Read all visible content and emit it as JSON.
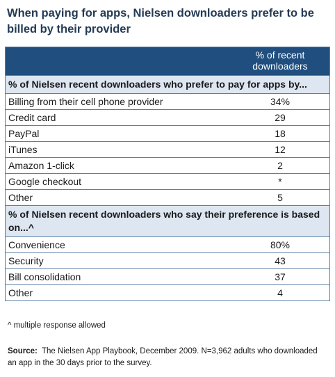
{
  "title": "When paying for apps, Nielsen downloaders prefer to be billed by their provider",
  "table": {
    "column_header": "% of recent downloaders",
    "sections": [
      {
        "heading": "% of Nielsen recent downloaders who prefer to pay for apps by...",
        "rows": [
          {
            "label": "Billing from their cell phone provider",
            "value": "34%"
          },
          {
            "label": "Credit card",
            "value": "29"
          },
          {
            "label": "PayPal",
            "value": "18"
          },
          {
            "label": "iTunes",
            "value": "12"
          },
          {
            "label": "Amazon 1-click",
            "value": "2"
          },
          {
            "label": "Google checkout",
            "value": "*"
          },
          {
            "label": "Other",
            "value": "5"
          }
        ]
      },
      {
        "heading": "% of Nielsen recent downloaders who say their preference is based on...^",
        "rows": [
          {
            "label": "Convenience",
            "value": "80%"
          },
          {
            "label": "Security",
            "value": "43"
          },
          {
            "label": "Bill consolidation",
            "value": "37"
          },
          {
            "label": "Other",
            "value": "4"
          }
        ]
      }
    ]
  },
  "footnote": "^ multiple response allowed",
  "source": {
    "label": "Source:",
    "text": "The Nielsen App Playbook, December 2009. N=3,962 adults who downloaded an app in the 30 days prior to the survey."
  },
  "colors": {
    "header_bg": "#1f4e7f",
    "section_bg": "#dde6f1",
    "title": "#243b55",
    "border": "#5a7ea8"
  }
}
